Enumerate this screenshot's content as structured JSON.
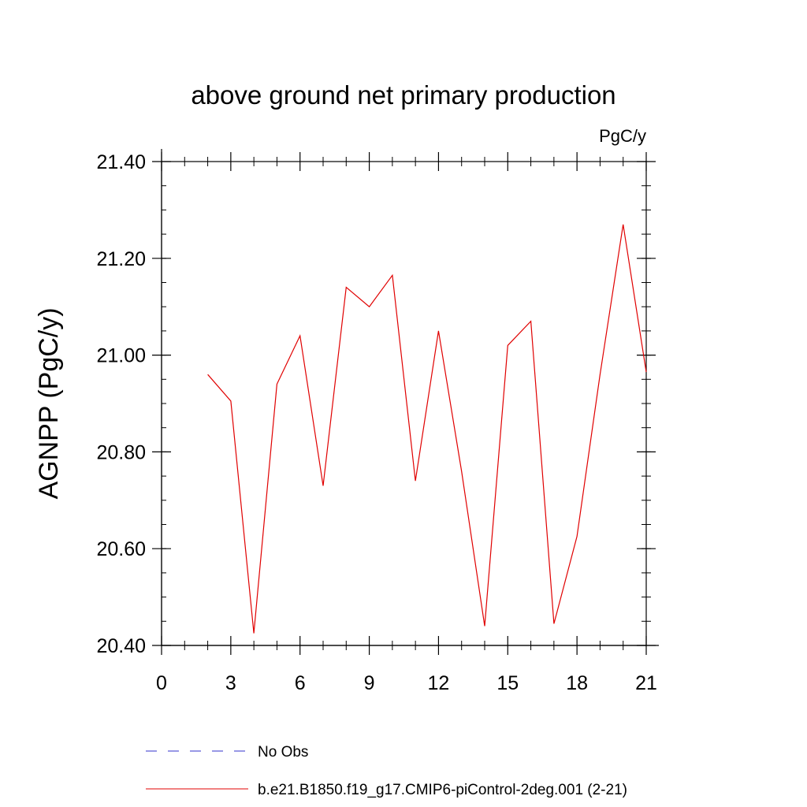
{
  "chart_data": {
    "type": "line",
    "title": "above ground net primary production",
    "units_label": "PgC/y",
    "ylabel": "AGNPP  (PgC/y)",
    "xlabel": "",
    "xlim": [
      0,
      21
    ],
    "ylim": [
      20.4,
      21.4
    ],
    "x_ticks": [
      0,
      3,
      6,
      9,
      12,
      15,
      18,
      21
    ],
    "x_minor_step": 1,
    "y_ticks": [
      20.4,
      20.6,
      20.8,
      21.0,
      21.2,
      21.4
    ],
    "y_tick_labels": [
      "20.40",
      "20.60",
      "20.80",
      "21.00",
      "21.20",
      "21.40"
    ],
    "y_minor_step": 0.05,
    "grid": false,
    "series": [
      {
        "name": "b.e21.B1850.f19_g17.CMIP6-piControl-2deg.001 (2-21)",
        "color": "#e00000",
        "dash": "solid",
        "x": [
          2,
          3,
          4,
          5,
          6,
          7,
          8,
          9,
          10,
          11,
          12,
          13,
          14,
          15,
          16,
          17,
          18,
          19,
          20,
          21
        ],
        "values": [
          20.96,
          20.905,
          20.425,
          20.94,
          21.04,
          20.73,
          21.14,
          21.1,
          21.165,
          20.74,
          21.05,
          20.76,
          20.44,
          21.02,
          21.07,
          20.445,
          20.625,
          20.96,
          21.27,
          20.965
        ]
      }
    ],
    "legend": {
      "placement": "bottom",
      "entries": [
        {
          "label": "No Obs",
          "color": "#3333cc",
          "dash": "dashed"
        },
        {
          "label": "b.e21.B1850.f19_g17.CMIP6-piControl-2deg.001 (2-21)",
          "color": "#e00000",
          "dash": "solid"
        }
      ]
    }
  }
}
